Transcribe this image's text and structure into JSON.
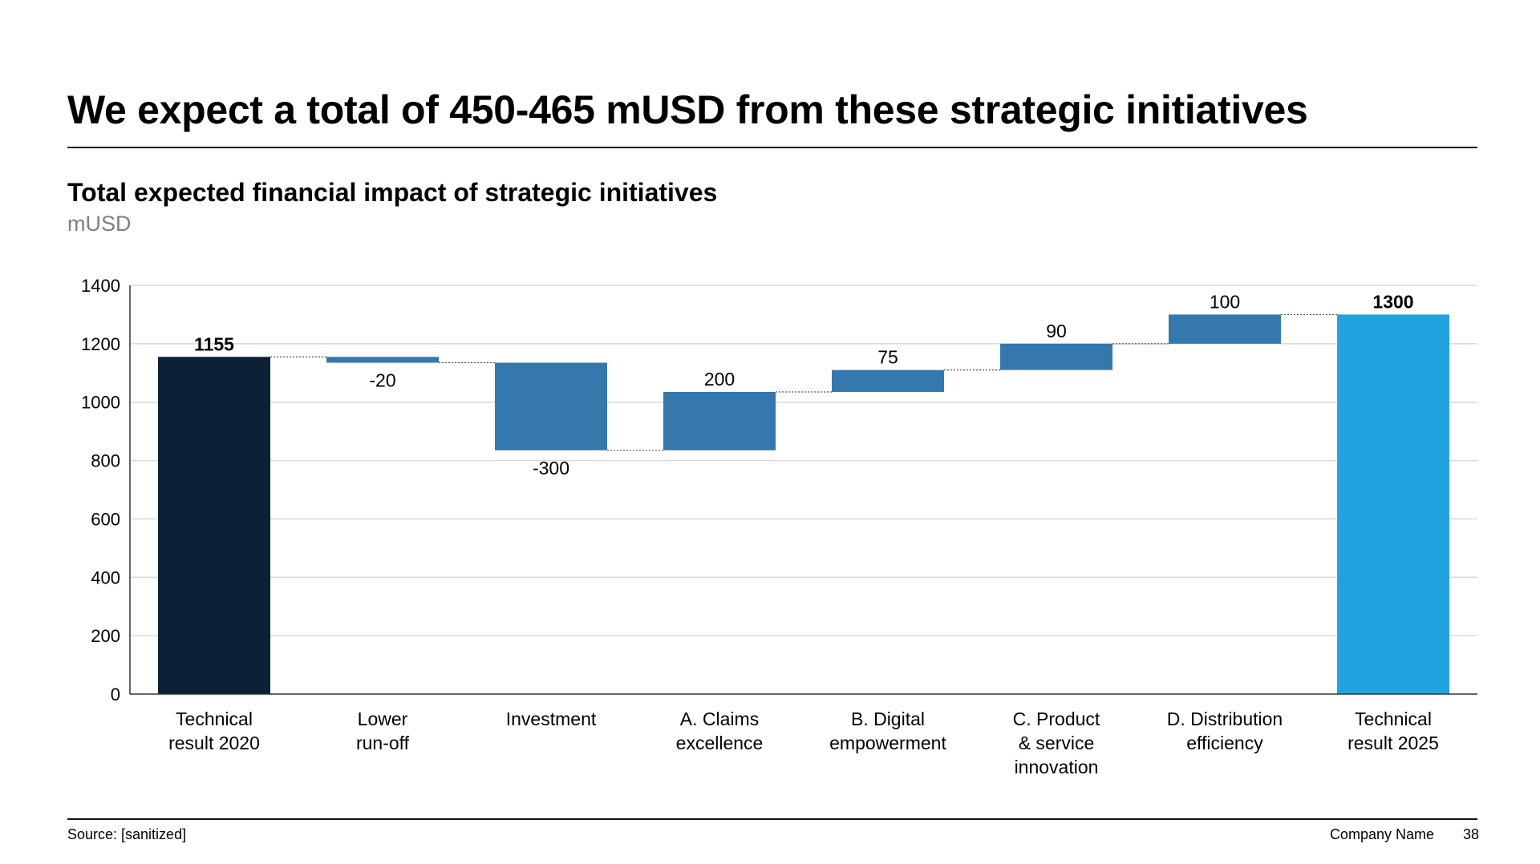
{
  "slide": {
    "title": "We expect a total of 450-465 mUSD from these strategic initiatives",
    "subtitle": "Total expected financial impact of strategic initiatives",
    "unit": "mUSD"
  },
  "footer": {
    "source": "Source: [sanitized]",
    "company": "Company Name",
    "page_number": "38"
  },
  "colors": {
    "start_bar": "#0b2135",
    "delta_bar": "#3578ad",
    "end_bar": "#22a3df",
    "gridline": "#d9d9d9",
    "axis": "#333333",
    "connector": "#555555"
  },
  "chart_data": {
    "type": "waterfall",
    "title": "Total expected financial impact of strategic initiatives",
    "ylabel": "mUSD",
    "ylim": [
      0,
      1400
    ],
    "yticks": [
      0,
      200,
      400,
      600,
      800,
      1000,
      1200,
      1400
    ],
    "grid": true,
    "bars": [
      {
        "label": [
          "Technical",
          "result 2020"
        ],
        "kind": "total",
        "value": 1155,
        "display": "1155",
        "bold": true
      },
      {
        "label": [
          "Lower",
          "run-off"
        ],
        "kind": "delta",
        "value": -20,
        "display": "-20",
        "bold": false
      },
      {
        "label": [
          "Investment"
        ],
        "kind": "delta",
        "value": -300,
        "display": "-300",
        "bold": false
      },
      {
        "label": [
          "A. Claims",
          "excellence"
        ],
        "kind": "delta",
        "value": 200,
        "display": "200",
        "bold": false
      },
      {
        "label": [
          "B. Digital",
          "empowerment"
        ],
        "kind": "delta",
        "value": 75,
        "display": "75",
        "bold": false
      },
      {
        "label": [
          "C. Product",
          "& service",
          "innovation"
        ],
        "kind": "delta",
        "value": 90,
        "display": "90",
        "bold": false
      },
      {
        "label": [
          "D. Distribution",
          "efficiency"
        ],
        "kind": "delta",
        "value": 100,
        "display": "100",
        "bold": false
      },
      {
        "label": [
          "Technical",
          "result 2025"
        ],
        "kind": "total",
        "value": 1300,
        "display": "1300",
        "bold": true
      }
    ]
  }
}
